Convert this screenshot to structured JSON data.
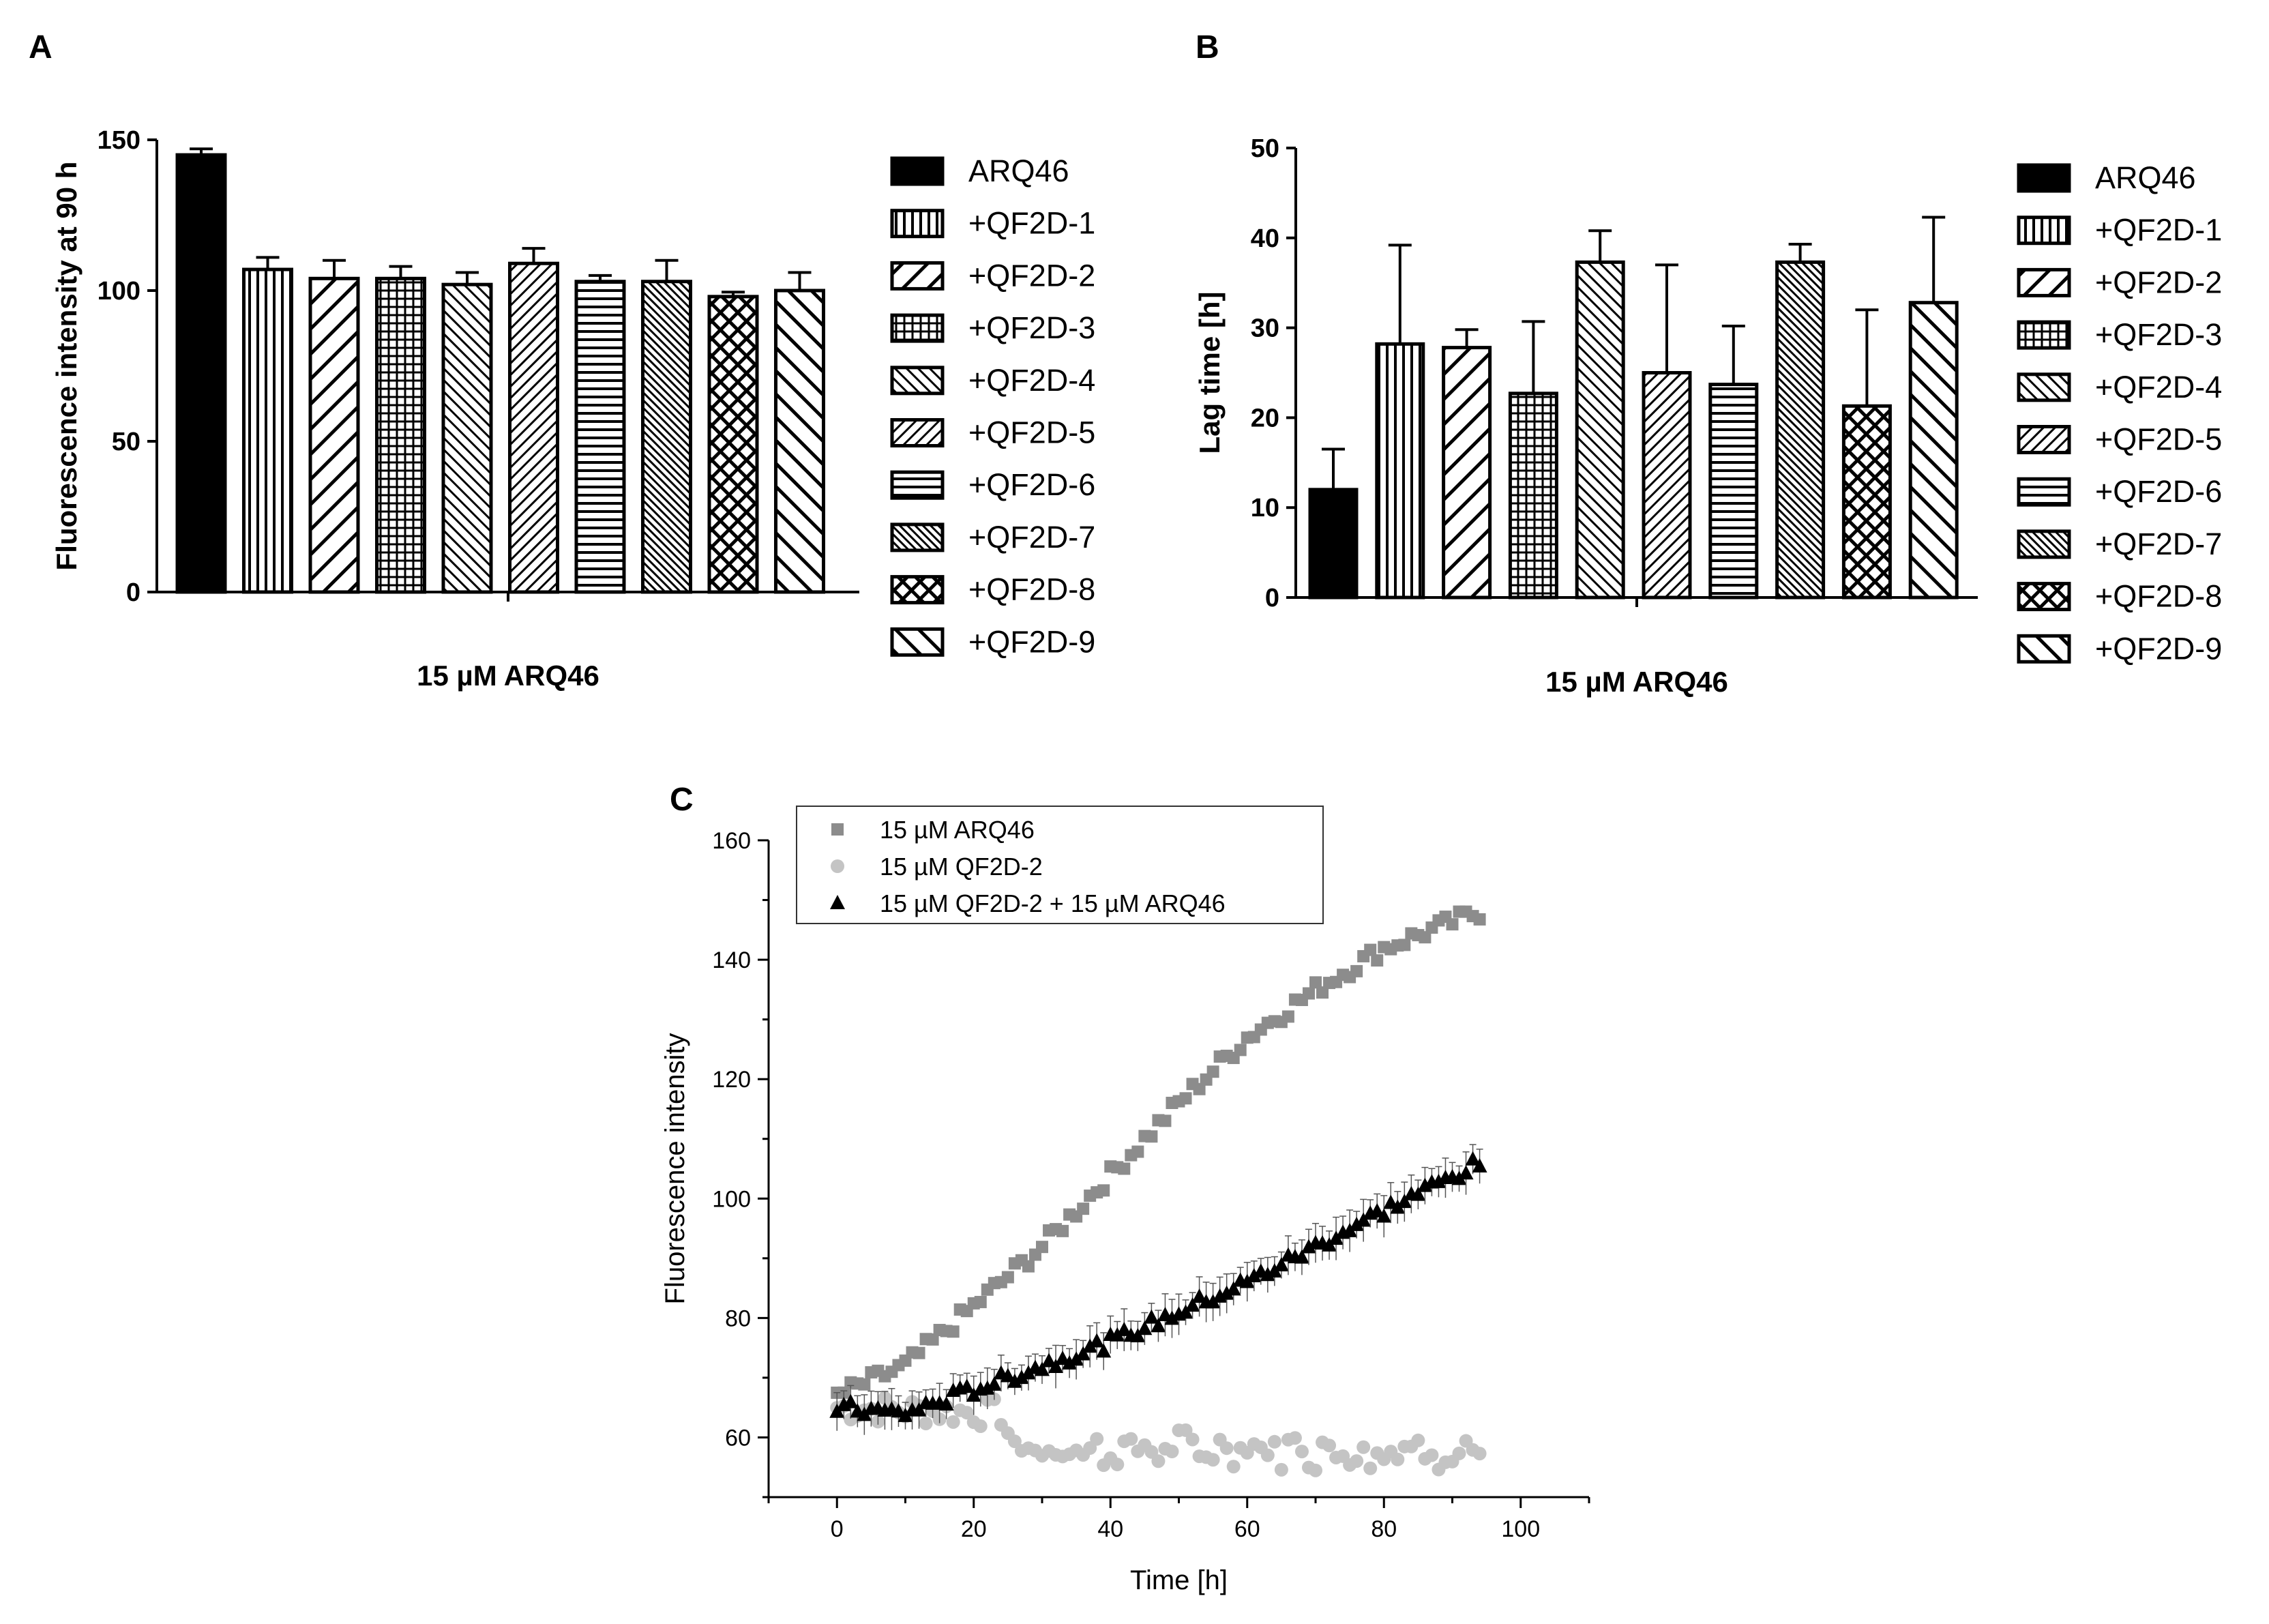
{
  "chart_data": [
    {
      "panel": "A",
      "type": "bar",
      "title": "",
      "xlabel": "15 µM ARQ46",
      "ylabel": "Fluorescence intensity at 90 h",
      "ylim": [
        0,
        150
      ],
      "yticks": [
        "0",
        "50",
        "100",
        "150"
      ],
      "categories": [
        "ARQ46",
        "+QF2D-1",
        "+QF2D-2",
        "+QF2D-3",
        "+QF2D-4",
        "+QF2D-5",
        "+QF2D-6",
        "+QF2D-7",
        "+QF2D-8",
        "+QF2D-9"
      ],
      "values": [
        145,
        107,
        104,
        104,
        102,
        109,
        103,
        103,
        98,
        100
      ],
      "errors": [
        2,
        4,
        6,
        4,
        4,
        5,
        2,
        7,
        1.5,
        6
      ],
      "patterns": [
        "solid",
        "vertical",
        "diag-back",
        "grid",
        "diag-fine",
        "diag-back-fine",
        "horizontal",
        "diag-dense",
        "cross",
        "diag-wide"
      ],
      "legend_position": "right"
    },
    {
      "panel": "B",
      "type": "bar",
      "title": "",
      "xlabel": "15 µM ARQ46",
      "ylabel": "Lag time [h]",
      "ylim": [
        0,
        50
      ],
      "yticks": [
        "0",
        "10",
        "20",
        "30",
        "40",
        "50"
      ],
      "categories": [
        "ARQ46",
        "+QF2D-1",
        "+QF2D-2",
        "+QF2D-3",
        "+QF2D-4",
        "+QF2D-5",
        "+QF2D-6",
        "+QF2D-7",
        "+QF2D-8",
        "+QF2D-9"
      ],
      "values": [
        12,
        28.2,
        27.8,
        22.7,
        37.3,
        25,
        23.7,
        37.3,
        21.3,
        32.8
      ],
      "errors": [
        4.5,
        11,
        2,
        8,
        3.5,
        12,
        6.5,
        2,
        10.7,
        9.5
      ],
      "patterns": [
        "solid",
        "vertical",
        "diag-back",
        "grid",
        "diag-fine",
        "diag-back-fine",
        "horizontal",
        "diag-dense",
        "cross",
        "diag-wide"
      ],
      "legend_position": "right"
    },
    {
      "panel": "C",
      "type": "scatter",
      "title": "",
      "xlabel": "Time [h]",
      "ylabel": "Fluorescence intensity",
      "xlim": [
        -10,
        110
      ],
      "ylim": [
        50,
        160
      ],
      "xticks": [
        "0",
        "20",
        "40",
        "60",
        "80",
        "100"
      ],
      "yticks": [
        "60",
        "80",
        "100",
        "120",
        "140",
        "160"
      ],
      "legend_position": "top-left",
      "series": [
        {
          "name": "15 µM ARQ46",
          "marker": "square",
          "color": "#8c8c8c",
          "curve": {
            "t_start": 0,
            "t_end": 94,
            "step": 1,
            "knots_t": [
              0,
              10,
              20,
              30,
              40,
              50,
              60,
              70,
              80,
              94
            ],
            "knots_y": [
              67,
              72,
              82,
              92,
              104,
              116,
              127,
              135,
              142,
              148
            ],
            "noise": 1.5
          }
        },
        {
          "name": "15 µM QF2D-2",
          "marker": "circle",
          "color": "#c4c4c4",
          "curve": {
            "t_start": 0,
            "t_end": 94,
            "step": 1,
            "knots_t": [
              0,
              24,
              26,
              94
            ],
            "knots_y": [
              65,
              64,
              58,
              58
            ],
            "noise": 2.5
          }
        },
        {
          "name": "15 µM QF2D-2 + 15 µM ARQ46",
          "marker": "triangle",
          "color": "#000000",
          "curve": {
            "t_start": 0,
            "t_end": 94,
            "step": 1,
            "knots_t": [
              0,
              10,
              20,
              30,
              40,
              50,
              60,
              70,
              80,
              94
            ],
            "knots_y": [
              65,
              64,
              68,
              72,
              76,
              81,
              86,
              92,
              98,
              106
            ],
            "noise": 1.2,
            "error": 3
          }
        }
      ]
    }
  ]
}
